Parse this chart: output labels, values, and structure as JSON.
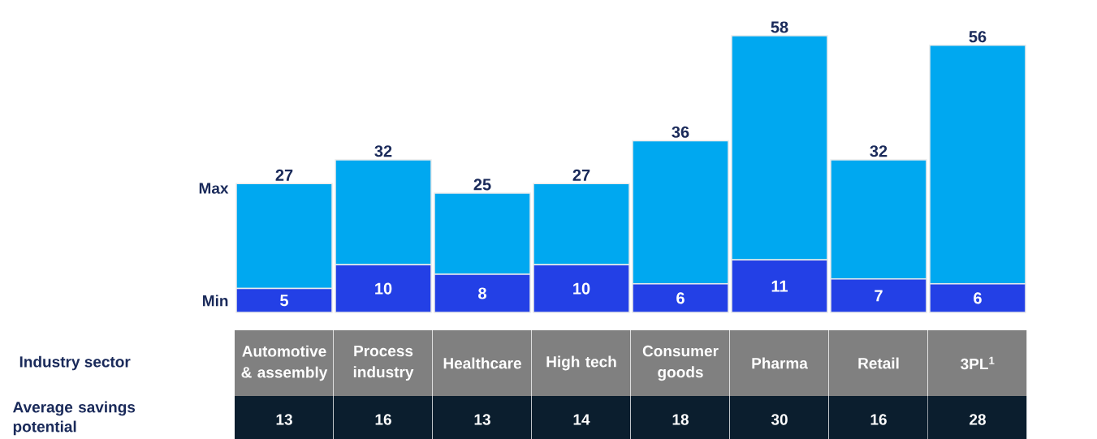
{
  "chart_data": {
    "type": "bar",
    "stacked": true,
    "categories": [
      "Automotive & assembly",
      "Process industry",
      "Healthcare",
      "High tech",
      "Consumer goods",
      "Pharma",
      "Retail",
      "3PL$^{1}$"
    ],
    "series": [
      {
        "name": "Min",
        "color": "#2340e6",
        "values": [
          5,
          10,
          8,
          10,
          6,
          11,
          7,
          6
        ],
        "value_labels": [
          "5",
          "10",
          "8",
          "10",
          "6",
          "11",
          "7",
          "6"
        ]
      },
      {
        "name": "Max",
        "color": "#00a8f0",
        "values": [
          22,
          22,
          17,
          17,
          30,
          47,
          25,
          50
        ]
      }
    ],
    "totals": [
      "27",
      "32",
      "25",
      "27",
      "36",
      "58",
      "32",
      "56"
    ],
    "annotations": [
      "Industry sector",
      "Average savings potential",
      "13",
      "16",
      "13",
      "14",
      "18",
      "30",
      "16",
      "28"
    ]
  }
}
